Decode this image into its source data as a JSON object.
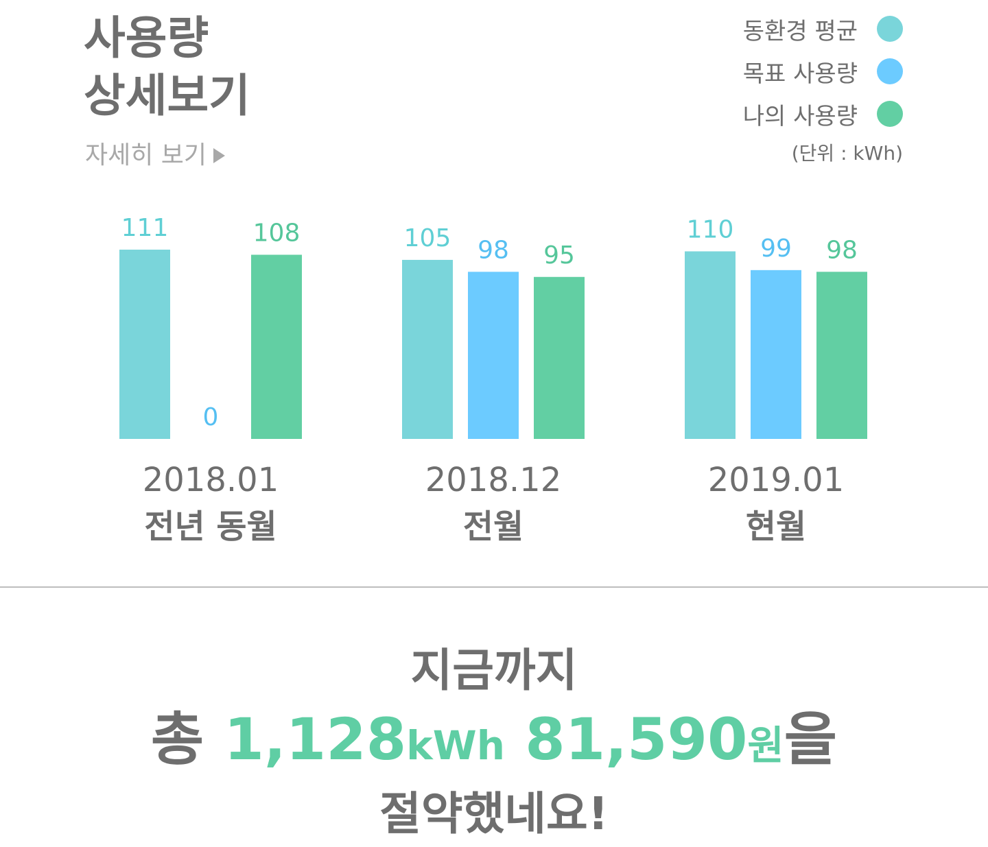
{
  "header": {
    "title_line1": "사용량",
    "title_line2": "상세보기",
    "detail_link": "자세히 보기"
  },
  "legend": {
    "items": [
      {
        "label": "동환경 평균",
        "color": "#7ad5da"
      },
      {
        "label": "목표 사용량",
        "color": "#6ccbff"
      },
      {
        "label": "나의 사용량",
        "color": "#62cfa3"
      }
    ],
    "unit": "(단위 : kWh)"
  },
  "chart_data": {
    "type": "bar",
    "categories": [
      "2018.01",
      "2018.12",
      "2019.01"
    ],
    "category_sublabels": [
      "전년 동월",
      "전월",
      "현월"
    ],
    "series": [
      {
        "name": "동환경 평균",
        "values": [
          111,
          105,
          110
        ],
        "color": "#7ad5da",
        "label_color": "#5fcfd4"
      },
      {
        "name": "목표 사용량",
        "values": [
          0,
          98,
          99
        ],
        "color": "#6ccbff",
        "label_color": "#55bff2"
      },
      {
        "name": "나의 사용량",
        "values": [
          108,
          95,
          98
        ],
        "color": "#62cfa3",
        "label_color": "#55c69a"
      }
    ],
    "ylim": [
      0,
      111
    ],
    "grid": false,
    "legend_position": "top-right"
  },
  "summary": {
    "line1": "지금까지",
    "prefix": "총",
    "kwh_value": "1,128",
    "kwh_unit": "kWh",
    "won_value": "81,590",
    "won_unit": "원",
    "suffix": "을",
    "line3": "절약했네요!"
  }
}
